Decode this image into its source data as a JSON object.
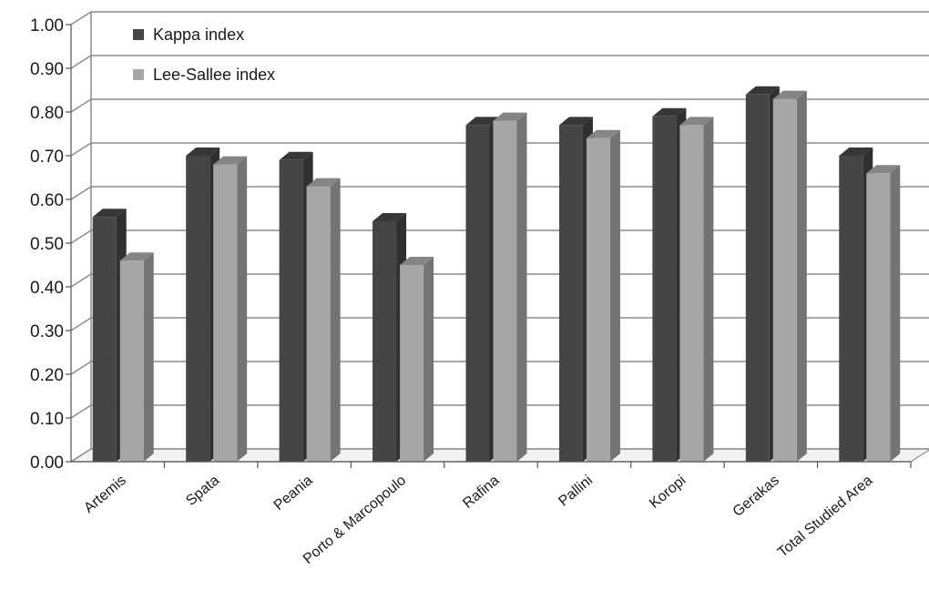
{
  "chart_data": {
    "type": "bar",
    "title": "",
    "xlabel": "",
    "ylabel": "",
    "ylim": [
      0,
      1.0
    ],
    "yticks": [
      "0.00",
      "0.10",
      "0.20",
      "0.30",
      "0.40",
      "0.50",
      "0.60",
      "0.70",
      "0.80",
      "0.90",
      "1.00"
    ],
    "categories": [
      "Artemis",
      "Spata",
      "Peania",
      "Porto & Marcopoulo",
      "Rafina",
      "Pallini",
      "Koropi",
      "Gerakas",
      "Total Studied Area"
    ],
    "series": [
      {
        "name": "Kappa index",
        "values": [
          0.56,
          0.7,
          0.69,
          0.55,
          0.77,
          0.77,
          0.79,
          0.84,
          0.7
        ],
        "color": "#454545"
      },
      {
        "name": "Lee-Sallee index",
        "values": [
          0.46,
          0.68,
          0.63,
          0.45,
          0.78,
          0.74,
          0.77,
          0.83,
          0.66
        ],
        "color": "#a6a6a6"
      }
    ],
    "grid": true,
    "legend_position": "top-left",
    "style": "3d-clustered-columns"
  }
}
